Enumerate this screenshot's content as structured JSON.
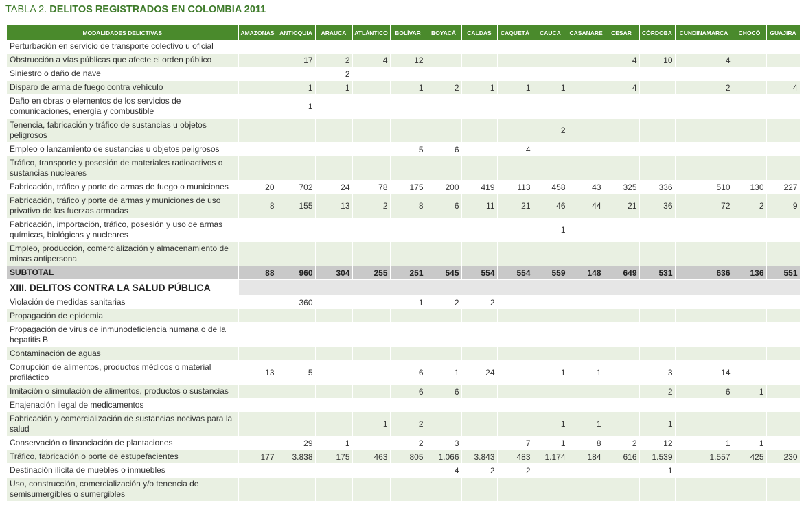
{
  "title": {
    "prefix": "TABLA 2.",
    "text": "DELITOS REGISTRADOS EN COLOMBIA 2011"
  },
  "columns": [
    "MODALIDADES DELICTIVAS",
    "AMAZONAS",
    "ANTIOQUIA",
    "ARAUCA",
    "ATLÁNTICO",
    "BOLÍVAR",
    "BOYACÁ",
    "CALDAS",
    "CAQUETÁ",
    "CAUCA",
    "CASANARE",
    "CESAR",
    "CÓRDOBA",
    "CUNDINAMARCA",
    "CHOCÓ",
    "GUAJIRA"
  ],
  "rows": [
    {
      "type": "data",
      "lines": 1,
      "label": "Perturbación en servicio de transporte colectivo u oficial",
      "values": [
        "",
        "",
        "",
        "",
        "",
        "",
        "",
        "",
        "",
        "",
        "",
        "",
        "",
        "",
        ""
      ]
    },
    {
      "type": "data",
      "lines": 1,
      "label": "Obstrucción a vías públicas que afecte el orden público",
      "values": [
        "",
        "17",
        "2",
        "4",
        "12",
        "",
        "",
        "",
        "",
        "",
        "4",
        "10",
        "4",
        "",
        ""
      ]
    },
    {
      "type": "data",
      "lines": 1,
      "label": "Siniestro o daño de nave",
      "values": [
        "",
        "",
        "2",
        "",
        "",
        "",
        "",
        "",
        "",
        "",
        "",
        "",
        "",
        "",
        ""
      ]
    },
    {
      "type": "data",
      "lines": 1,
      "label": "Disparo de arma de fuego contra vehículo",
      "values": [
        "",
        "1",
        "1",
        "",
        "1",
        "2",
        "1",
        "1",
        "1",
        "",
        "4",
        "",
        "2",
        "",
        "4"
      ]
    },
    {
      "type": "data",
      "lines": 2,
      "label": "Daño en obras o elementos de los servicios de comunicaciones, energía y combustible",
      "values": [
        "",
        "1",
        "",
        "",
        "",
        "",
        "",
        "",
        "",
        "",
        "",
        "",
        "",
        "",
        ""
      ]
    },
    {
      "type": "data",
      "lines": 2,
      "label": "Tenencia, fabricación y tráfico de sustancias u objetos peligrosos",
      "values": [
        "",
        "",
        "",
        "",
        "",
        "",
        "",
        "",
        "2",
        "",
        "",
        "",
        "",
        "",
        ""
      ]
    },
    {
      "type": "data",
      "lines": 1,
      "label": "Empleo o lanzamiento de sustancias u objetos peligrosos",
      "values": [
        "",
        "",
        "",
        "",
        "5",
        "6",
        "",
        "4",
        "",
        "",
        "",
        "",
        "",
        "",
        ""
      ]
    },
    {
      "type": "data",
      "lines": 2,
      "label": "Tráfico, transporte y posesión de materiales radioactivos o sustancias nucleares",
      "values": [
        "",
        "",
        "",
        "",
        "",
        "",
        "",
        "",
        "",
        "",
        "",
        "",
        "",
        "",
        ""
      ]
    },
    {
      "type": "data",
      "lines": 1,
      "label": "Fabricación, tráfico y porte de armas de fuego o municiones",
      "values": [
        "20",
        "702",
        "24",
        "78",
        "175",
        "200",
        "419",
        "113",
        "458",
        "43",
        "325",
        "336",
        "510",
        "130",
        "227"
      ]
    },
    {
      "type": "data",
      "lines": 2,
      "label": "Fabricación, tráfico y porte de armas y municiones de uso privativo de las fuerzas armadas",
      "values": [
        "8",
        "155",
        "13",
        "2",
        "8",
        "6",
        "11",
        "21",
        "46",
        "44",
        "21",
        "36",
        "72",
        "2",
        "9"
      ]
    },
    {
      "type": "data",
      "lines": 2,
      "label": "Fabricación, importación, tráfico, posesión y uso de armas químicas, biológicas y nucleares",
      "values": [
        "",
        "",
        "",
        "",
        "",
        "",
        "",
        "",
        "1",
        "",
        "",
        "",
        "",
        "",
        ""
      ]
    },
    {
      "type": "data",
      "lines": 2,
      "label": "Empleo, producción, comercialización y almacenamiento de minas antipersona",
      "values": [
        "",
        "",
        "",
        "",
        "",
        "",
        "",
        "",
        "",
        "",
        "",
        "",
        "",
        "",
        ""
      ]
    },
    {
      "type": "subtotal",
      "lines": 1,
      "label": "SUBTOTAL",
      "values": [
        "88",
        "960",
        "304",
        "255",
        "251",
        "545",
        "554",
        "554",
        "559",
        "148",
        "649",
        "531",
        "636",
        "136",
        "551"
      ]
    },
    {
      "type": "section",
      "label": "XIII. DELITOS CONTRA LA SALUD PÚBLICA"
    },
    {
      "type": "data",
      "lines": 1,
      "label": "Violación de medidas sanitarias",
      "values": [
        "",
        "360",
        "",
        "",
        "1",
        "2",
        "2",
        "",
        "",
        "",
        "",
        "",
        "",
        "",
        ""
      ]
    },
    {
      "type": "data",
      "lines": 1,
      "label": "Propagación de epidemia",
      "values": [
        "",
        "",
        "",
        "",
        "",
        "",
        "",
        "",
        "",
        "",
        "",
        "",
        "",
        "",
        ""
      ]
    },
    {
      "type": "data",
      "lines": 2,
      "label": "Propagación de virus de inmunodeficiencia humana o de la hepatitis B",
      "values": [
        "",
        "",
        "",
        "",
        "",
        "",
        "",
        "",
        "",
        "",
        "",
        "",
        "",
        "",
        ""
      ]
    },
    {
      "type": "data",
      "lines": 1,
      "label": "Contaminación de aguas",
      "values": [
        "",
        "",
        "",
        "",
        "",
        "",
        "",
        "",
        "",
        "",
        "",
        "",
        "",
        "",
        ""
      ]
    },
    {
      "type": "data",
      "lines": 2,
      "label": "Corrupción de alimentos, productos médicos o material profiláctico",
      "values": [
        "13",
        "5",
        "",
        "",
        "6",
        "1",
        "24",
        "",
        "1",
        "1",
        "",
        "3",
        "14",
        "",
        ""
      ]
    },
    {
      "type": "data",
      "lines": 1,
      "label": "Imitación o simulación de alimentos, productos o sustancias",
      "values": [
        "",
        "",
        "",
        "",
        "6",
        "6",
        "",
        "",
        "",
        "",
        "",
        "2",
        "6",
        "1",
        ""
      ]
    },
    {
      "type": "data",
      "lines": 1,
      "label": "Enajenación ilegal de medicamentos",
      "values": [
        "",
        "",
        "",
        "",
        "",
        "",
        "",
        "",
        "",
        "",
        "",
        "",
        "",
        "",
        ""
      ]
    },
    {
      "type": "data",
      "lines": 2,
      "label": "Fabricación y comercialización de sustancias nocivas para la salud",
      "values": [
        "",
        "",
        "",
        "1",
        "2",
        "",
        "",
        "",
        "1",
        "1",
        "",
        "1",
        "",
        "",
        ""
      ]
    },
    {
      "type": "data",
      "lines": 1,
      "label": "Conservación o financiación de plantaciones",
      "values": [
        "",
        "29",
        "1",
        "",
        "2",
        "3",
        "",
        "7",
        "1",
        "8",
        "2",
        "12",
        "1",
        "1",
        ""
      ]
    },
    {
      "type": "data",
      "lines": 1,
      "label": "Tráfico, fabricación o porte de estupefacientes",
      "values": [
        "177",
        "3.838",
        "175",
        "463",
        "805",
        "1.066",
        "3.843",
        "483",
        "1.174",
        "184",
        "616",
        "1.539",
        "1.557",
        "425",
        "230"
      ]
    },
    {
      "type": "data",
      "lines": 1,
      "label": "Destinación ilícita de muebles o inmuebles",
      "values": [
        "",
        "",
        "",
        "",
        "",
        "4",
        "2",
        "2",
        "",
        "",
        "",
        "1",
        "",
        "",
        ""
      ]
    },
    {
      "type": "data",
      "lines": 2,
      "label": "Uso, construcción, comercialización y/o tenencia de semisumergibles o sumergibles",
      "values": [
        "",
        "",
        "",
        "",
        "",
        "",
        "",
        "",
        "",
        "",
        "",
        "",
        "",
        "",
        ""
      ]
    }
  ]
}
